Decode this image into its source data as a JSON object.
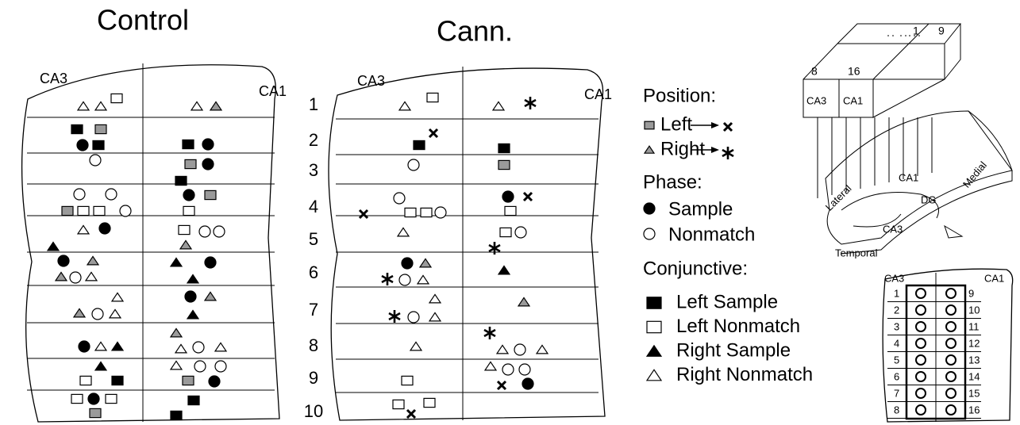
{
  "panels": [
    {
      "title": "Control",
      "ca3": "CA3",
      "ca1": "CA1"
    },
    {
      "title": "Cann.",
      "ca3": "CA3",
      "ca1": "CA1"
    }
  ],
  "rows": [
    "1",
    "2",
    "3",
    "4",
    "5",
    "6",
    "7",
    "8",
    "9",
    "10"
  ],
  "legend": {
    "position": {
      "heading": "Position:",
      "items": [
        "Left",
        "Right"
      ]
    },
    "phase": {
      "heading": "Phase:",
      "items": [
        "Sample",
        "Nonmatch"
      ]
    },
    "conjunctive": {
      "heading": "Conjunctive:",
      "items": [
        "Left Sample",
        "Left Nonmatch",
        "Right Sample",
        "Right Nonmatch"
      ]
    }
  },
  "schematic": {
    "top_labels": [
      "1",
      "9"
    ],
    "box_labels": [
      "8",
      "16"
    ],
    "regions": [
      "CA3",
      "CA1"
    ],
    "lateral": "Lateral",
    "medial": "Medial",
    "ca1": "CA1",
    "dg": "DG",
    "ca3": "CA3",
    "temporal": "Temporal"
  },
  "grid": {
    "ca3": "CA3",
    "ca1": "CA1",
    "left": [
      "1",
      "2",
      "3",
      "4",
      "5",
      "6",
      "7",
      "8"
    ],
    "right": [
      "9",
      "10",
      "11",
      "12",
      "13",
      "14",
      "15",
      "16"
    ]
  }
}
